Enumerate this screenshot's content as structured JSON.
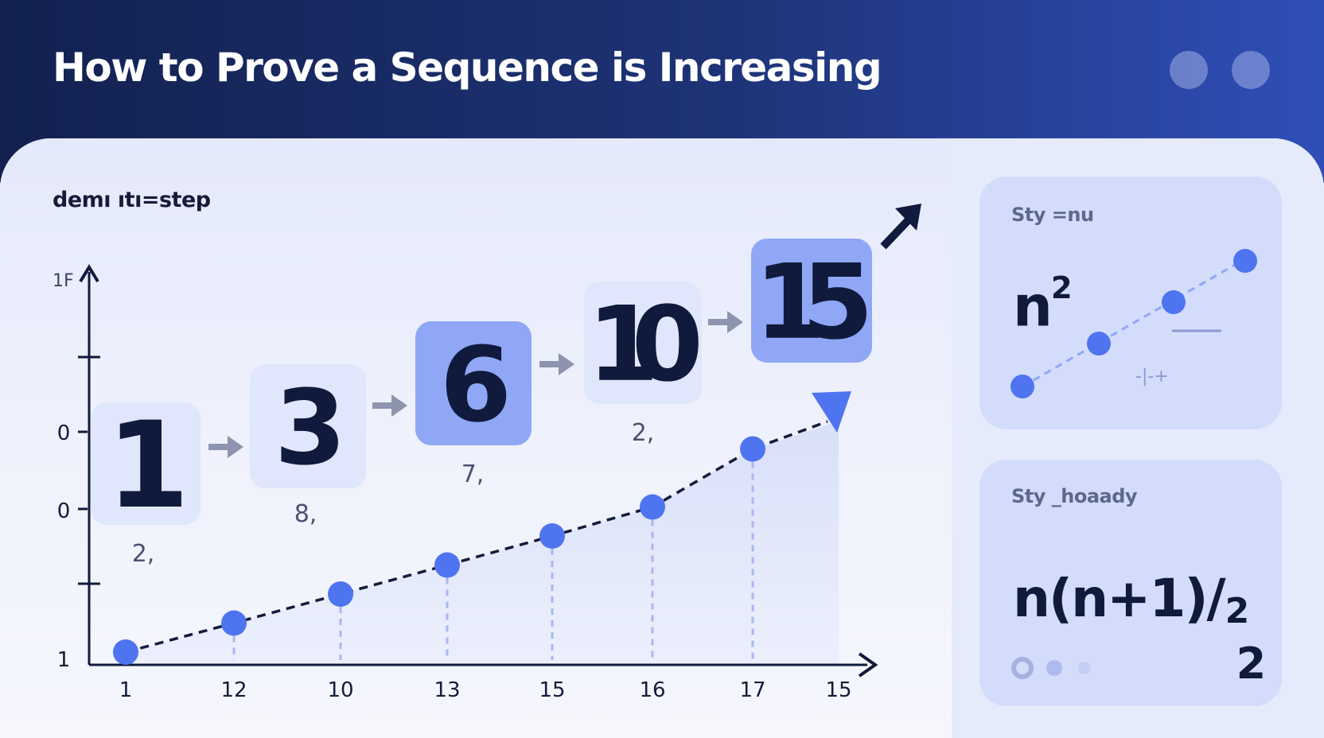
{
  "header": {
    "title": "How to Prove a Sequence is Increasing"
  },
  "main": {
    "caption": "demı ıtı=step"
  },
  "chart_data": {
    "type": "line",
    "x_ticks": [
      "1",
      "12",
      "10",
      "13",
      "15",
      "16",
      "17",
      "15"
    ],
    "y_ticks": [
      "1",
      "0",
      "0",
      "1"
    ],
    "y_top_label": "1F",
    "points": [
      {
        "x": 1,
        "y": 1
      },
      {
        "x": 2,
        "y": 2
      },
      {
        "x": 3,
        "y": 3
      },
      {
        "x": 4,
        "y": 4
      },
      {
        "x": 5,
        "y": 5
      },
      {
        "x": 6,
        "y": 6
      },
      {
        "x": 7,
        "y": 8
      }
    ]
  },
  "sequence": {
    "terms": [
      {
        "value": "1",
        "label": "2,",
        "highlight": false
      },
      {
        "value": "3",
        "label": "8,",
        "highlight": false
      },
      {
        "value": "6",
        "label": "7,",
        "highlight": true
      },
      {
        "value": "10",
        "label": "2,",
        "highlight": false
      },
      {
        "value": "15",
        "label": "",
        "highlight": true
      }
    ]
  },
  "cards": [
    {
      "label": "Sty =nu",
      "formula": "n",
      "exponent": "2",
      "mini_legend": "-|-+"
    },
    {
      "label": "Sty _hoaady",
      "formula": "n(n+1)/",
      "superscript": "2",
      "subscript": "2"
    }
  ],
  "colors": {
    "accent": "#4f74f0",
    "highlight_box": "#8fa7f5",
    "plain_box": "#e0e6fb",
    "dark": "#101a3c"
  }
}
